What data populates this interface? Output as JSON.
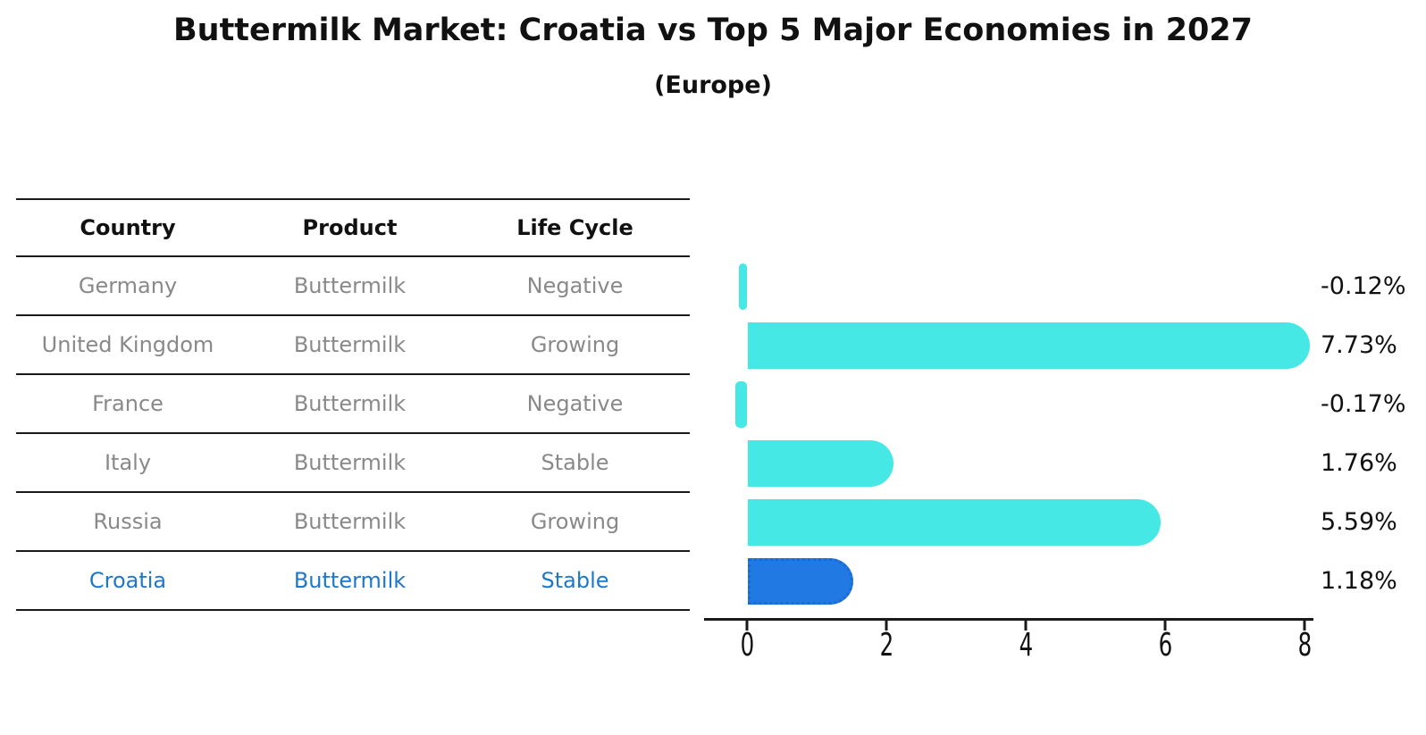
{
  "title": "Buttermilk Market: Croatia vs Top 5 Major Economies in 2027",
  "subtitle": "(Europe)",
  "table": {
    "headers": [
      "Country",
      "Product",
      "Life Cycle"
    ],
    "rows": [
      {
        "country": "Germany",
        "product": "Buttermilk",
        "life_cycle": "Negative",
        "highlight": false
      },
      {
        "country": "United Kingdom",
        "product": "Buttermilk",
        "life_cycle": "Growing",
        "highlight": false
      },
      {
        "country": "France",
        "product": "Buttermilk",
        "life_cycle": "Negative",
        "highlight": false
      },
      {
        "country": "Italy",
        "product": "Buttermilk",
        "life_cycle": "Stable",
        "highlight": false
      },
      {
        "country": "Russia",
        "product": "Buttermilk",
        "life_cycle": "Growing",
        "highlight": false
      },
      {
        "country": "Croatia",
        "product": "Buttermilk",
        "life_cycle": "Stable",
        "highlight": true
      }
    ]
  },
  "chart_data": {
    "type": "bar",
    "orientation": "horizontal",
    "categories": [
      "Germany",
      "United Kingdom",
      "France",
      "Italy",
      "Russia",
      "Croatia"
    ],
    "values": [
      -0.12,
      7.73,
      -0.17,
      1.76,
      5.59,
      1.18
    ],
    "value_labels": [
      "-0.12%",
      "7.73%",
      "-0.17%",
      "1.76%",
      "5.59%",
      "1.18%"
    ],
    "x_ticks": [
      0,
      2,
      4,
      6,
      8
    ],
    "xlim": [
      -0.6,
      8.1
    ],
    "grid": false,
    "legend": "none",
    "bar_color": "#45e8e4",
    "highlight_color": "#217ae3",
    "highlight_border_color": "#1a6ad0",
    "highlight_index": 5,
    "highlight_text_color": "#1f77c8",
    "table_text_color": "#898989"
  }
}
